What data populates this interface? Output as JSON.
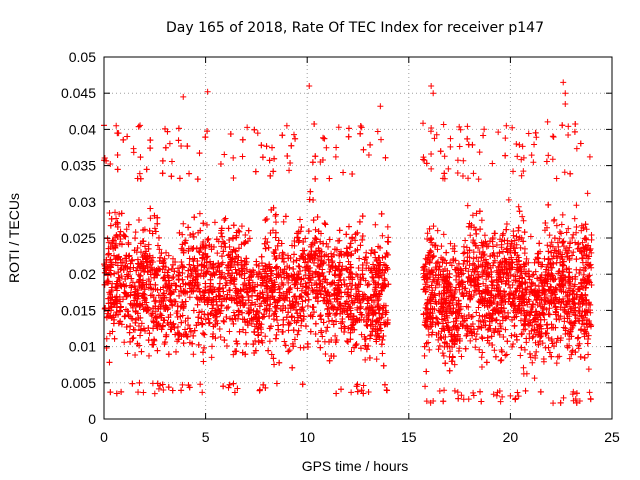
{
  "chart_data": {
    "type": "scatter",
    "title": "Day 165 of 2018, Rate Of TEC Index for receiver p147",
    "xlabel": "GPS time / hours",
    "ylabel": "ROTI / TECUs",
    "xlim": [
      0,
      25
    ],
    "ylim": [
      0,
      0.05
    ],
    "x_ticks": [
      "0",
      "5",
      "10",
      "15",
      "20",
      "25"
    ],
    "y_ticks": [
      "0",
      "0.005",
      "0.01",
      "0.015",
      "0.02",
      "0.025",
      "0.03",
      "0.035",
      "0.04",
      "0.045",
      "0.05"
    ],
    "grid": true,
    "marker": "+",
    "color": "#ff0000",
    "data_gap_hours": [
      14.0,
      15.7
    ],
    "series": [
      {
        "name": "ROTI",
        "segments": [
          {
            "x_range": [
              0.0,
              14.0
            ],
            "typical_min": 0.005,
            "typical_max": 0.033,
            "min": 0.0035,
            "max": 0.046
          },
          {
            "x_range": [
              15.7,
              24.0
            ],
            "typical_min": 0.004,
            "typical_max": 0.033,
            "min": 0.0022,
            "max": 0.0465
          }
        ],
        "notable_points": [
          {
            "x": 0.6,
            "y": 0.0405
          },
          {
            "x": 3.9,
            "y": 0.0445
          },
          {
            "x": 5.1,
            "y": 0.0452
          },
          {
            "x": 9.0,
            "y": 0.0405
          },
          {
            "x": 10.1,
            "y": 0.046
          },
          {
            "x": 13.6,
            "y": 0.0432
          },
          {
            "x": 16.1,
            "y": 0.046
          },
          {
            "x": 16.2,
            "y": 0.045
          },
          {
            "x": 16.1,
            "y": 0.0402
          },
          {
            "x": 19.8,
            "y": 0.0405
          },
          {
            "x": 22.6,
            "y": 0.0465
          },
          {
            "x": 22.7,
            "y": 0.045
          },
          {
            "x": 22.7,
            "y": 0.0435
          },
          {
            "x": 22.1,
            "y": 0.0022
          },
          {
            "x": 2.5,
            "y": 0.0035
          },
          {
            "x": 15.8,
            "y": 0.0045
          },
          {
            "x": 20.0,
            "y": 0.0032
          }
        ]
      }
    ]
  }
}
